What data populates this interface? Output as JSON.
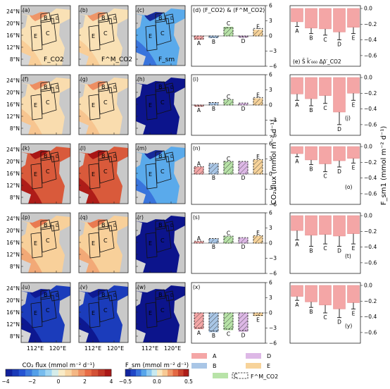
{
  "map_columns": [
    {
      "id": "flux",
      "title": "F_CO2"
    },
    {
      "id": "model",
      "title": "F^M_CO2"
    },
    {
      "id": "fsm",
      "title": "F_sm"
    }
  ],
  "map_panel_letters": [
    [
      "(a)",
      "(b)",
      "(c)"
    ],
    [
      "(f)",
      "(g)",
      "(h)"
    ],
    [
      "(k)",
      "(l)",
      "(m)"
    ],
    [
      "(p)",
      "(q)",
      "(r)"
    ],
    [
      "(u)",
      "(v)",
      "(w)"
    ]
  ],
  "map_region_labels": [
    "B",
    "C",
    "E",
    "D"
  ],
  "map_lat_ticks": [
    "24°N",
    "20°N",
    "16°N",
    "12°N",
    "8°N"
  ],
  "map_lon_ticks": [
    "112°E",
    "120°E"
  ],
  "map_fill_levels": [
    0.5,
    0.5,
    -0.2,
    0.6,
    0.6,
    -0.6,
    2.6,
    2.6,
    -0.2,
    0.9,
    0.9,
    -0.5,
    -3.2,
    -3.2,
    -0.5
  ],
  "colorbars": {
    "flux": {
      "label": "CO₂ flux (mmol m⁻² d⁻¹)",
      "ticks": [
        "−4",
        "−2",
        "0",
        "2",
        "4"
      ]
    },
    "fsm": {
      "label": "F_sm (mmol m⁻² d⁻¹)",
      "ticks": [
        "−0.5",
        "0.0",
        "0.5"
      ]
    }
  },
  "legend": {
    "items": [
      {
        "name": "A",
        "color": "#f4a6a6"
      },
      {
        "name": "B",
        "color": "#a9c6e6"
      },
      {
        "name": "C",
        "color": "#b8e3a8"
      },
      {
        "name": "D",
        "color": "#ddb8e6"
      },
      {
        "name": "E",
        "color": "#f7d39a"
      }
    ],
    "dashed_label": "F^M_CO2"
  },
  "chart_data": [
    {
      "type": "bar",
      "panels": [
        "(d)",
        "(i)",
        "(n)",
        "(s)",
        "(x)"
      ],
      "title": "(d) ⟨F_CO2⟩ & ⟨F^M_CO2⟩",
      "ylabel": "CO₂ flux (mmol m⁻² d⁻¹)",
      "ylim": [
        -6,
        6
      ],
      "yticks": [
        "6",
        "3",
        "0",
        "−3",
        "−6"
      ],
      "categories": [
        "A",
        "B",
        "C",
        "D",
        "E"
      ],
      "series": [
        {
          "name": "(d) F_CO2",
          "values": [
            -0.7,
            -0.4,
            1.8,
            -0.3,
            1.2
          ]
        },
        {
          "name": "(d) F^M_CO2",
          "values": [
            -0.6,
            -0.3,
            1.6,
            -0.2,
            1.5
          ]
        },
        {
          "name": "(i) F_CO2",
          "values": [
            -0.3,
            0.4,
            1.0,
            0.3,
            1.3
          ]
        },
        {
          "name": "(i) F^M_CO2",
          "values": [
            -0.2,
            0.5,
            1.1,
            0.4,
            1.5
          ]
        },
        {
          "name": "(n) F_CO2",
          "values": [
            1.4,
            2.0,
            2.4,
            2.4,
            2.8
          ]
        },
        {
          "name": "(n) F^M_CO2",
          "values": [
            1.5,
            2.1,
            2.5,
            2.5,
            2.9
          ]
        },
        {
          "name": "(s) F_CO2",
          "values": [
            0.3,
            0.8,
            1.3,
            1.0,
            1.4
          ]
        },
        {
          "name": "(s) F^M_CO2",
          "values": [
            0.4,
            0.9,
            1.4,
            1.1,
            1.5
          ]
        },
        {
          "name": "(x) F_CO2",
          "values": [
            -3.2,
            -3.8,
            -3.4,
            -3.7,
            -0.6
          ]
        },
        {
          "name": "(x) F^M_CO2",
          "values": [
            -3.0,
            -3.6,
            -3.2,
            -3.5,
            -0.5
          ]
        }
      ]
    },
    {
      "type": "bar",
      "panels": [
        "(e)",
        "(j)",
        "(o)",
        "(t)",
        "(y)"
      ],
      "panel_e_annotation": "(e) S̄ k̄′₆₆₀ Δρ̄′_CO2",
      "ylabel": "F_sm1 (mmol m⁻² d⁻¹)",
      "ylim": [
        -0.7,
        0
      ],
      "yticks": [
        "0.0",
        "−0.2",
        "−0.4",
        "−0.6"
      ],
      "categories": [
        "A",
        "B",
        "C",
        "D",
        "E"
      ],
      "series": [
        {
          "name": "(e)",
          "values": [
            -0.17,
            -0.25,
            -0.26,
            -0.3,
            -0.24
          ],
          "errors": [
            0.06,
            0.07,
            0.08,
            0.1,
            0.08
          ]
        },
        {
          "name": "(j)",
          "values": [
            -0.21,
            -0.27,
            -0.23,
            -0.44,
            -0.2
          ],
          "errors": [
            0.08,
            0.09,
            0.1,
            0.16,
            0.09
          ]
        },
        {
          "name": "(o)",
          "values": [
            -0.09,
            -0.17,
            -0.22,
            -0.18,
            -0.15
          ],
          "errors": [
            0.04,
            0.06,
            0.1,
            0.08,
            0.06
          ]
        },
        {
          "name": "(t)",
          "values": [
            -0.19,
            -0.25,
            -0.24,
            -0.26,
            -0.23
          ],
          "errors": [
            0.12,
            0.14,
            0.12,
            0.13,
            0.13
          ]
        },
        {
          "name": "(y)",
          "values": [
            -0.14,
            -0.21,
            -0.25,
            -0.3,
            -0.22
          ],
          "errors": [
            0.05,
            0.07,
            0.1,
            0.11,
            0.08
          ]
        }
      ]
    }
  ]
}
